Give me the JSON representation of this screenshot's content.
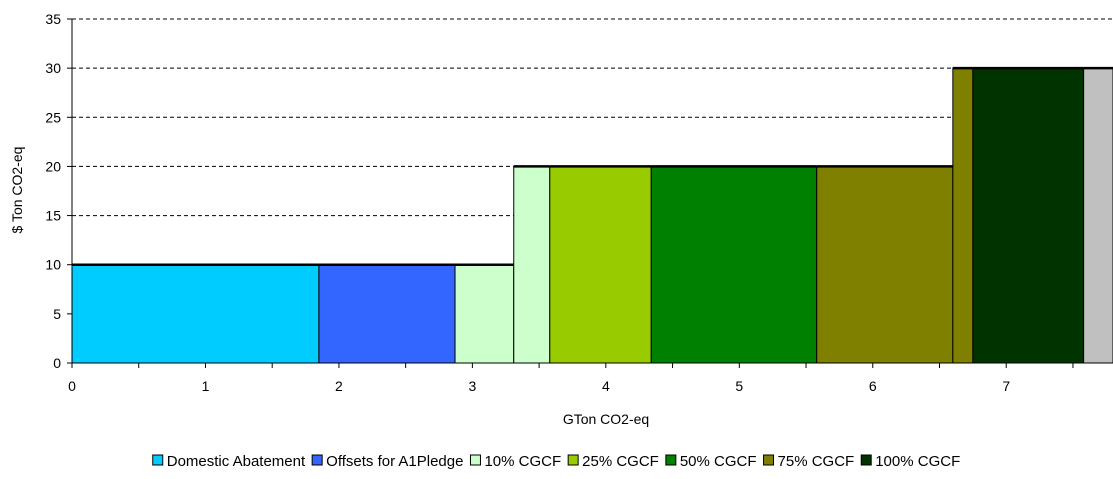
{
  "chart_data": {
    "type": "bar",
    "xlabel": "GTon CO2-eq",
    "ylabel": "$ Ton CO2-eq",
    "xlim": [
      0,
      7.8
    ],
    "ylim": [
      0,
      35
    ],
    "x_ticks": [
      0,
      1,
      2,
      3,
      4,
      5,
      6,
      7
    ],
    "y_ticks": [
      0,
      5,
      10,
      15,
      20,
      25,
      30,
      35
    ],
    "grid": "horizontal dashed",
    "legend_position": "bottom",
    "series": [
      {
        "name": "Domestic Abatement",
        "color": "#00CCFF",
        "x_start": 0.0,
        "x_end": 1.85,
        "y": 10
      },
      {
        "name": "Offsets for A1Pledge",
        "color": "#3366FF",
        "x_start": 1.85,
        "x_end": 2.87,
        "y": 10
      },
      {
        "name": "10% CGCF",
        "color": "#CCFFCC",
        "x_start": 2.87,
        "x_end": 3.31,
        "y": 10
      },
      {
        "name": "10% CGCF",
        "color": "#CCFFCC",
        "x_start": 3.31,
        "x_end": 3.58,
        "y": 20
      },
      {
        "name": "25% CGCF",
        "color": "#99CC00",
        "x_start": 3.58,
        "x_end": 4.34,
        "y": 20
      },
      {
        "name": "50% CGCF",
        "color": "#008000",
        "x_start": 4.34,
        "x_end": 5.58,
        "y": 20
      },
      {
        "name": "75% CGCF",
        "color": "#808000",
        "x_start": 5.58,
        "x_end": 6.6,
        "y": 20
      },
      {
        "name": "75% CGCF",
        "color": "#808000",
        "x_start": 6.6,
        "x_end": 6.75,
        "y": 30
      },
      {
        "name": "100% CGCF",
        "color": "#003300",
        "x_start": 6.75,
        "x_end": 7.58,
        "y": 30
      },
      {
        "name": "",
        "color": "#C0C0C0",
        "x_start": 7.58,
        "x_end": 7.8,
        "y": 30
      }
    ],
    "legend": [
      {
        "name": "Domestic Abatement",
        "color": "#00CCFF"
      },
      {
        "name": "Offsets for A1Pledge",
        "color": "#3366FF"
      },
      {
        "name": "10% CGCF",
        "color": "#CCFFCC"
      },
      {
        "name": "25% CGCF",
        "color": "#99CC00"
      },
      {
        "name": "50% CGCF",
        "color": "#008000"
      },
      {
        "name": "75% CGCF",
        "color": "#808000"
      },
      {
        "name": "100% CGCF",
        "color": "#003300"
      }
    ]
  }
}
